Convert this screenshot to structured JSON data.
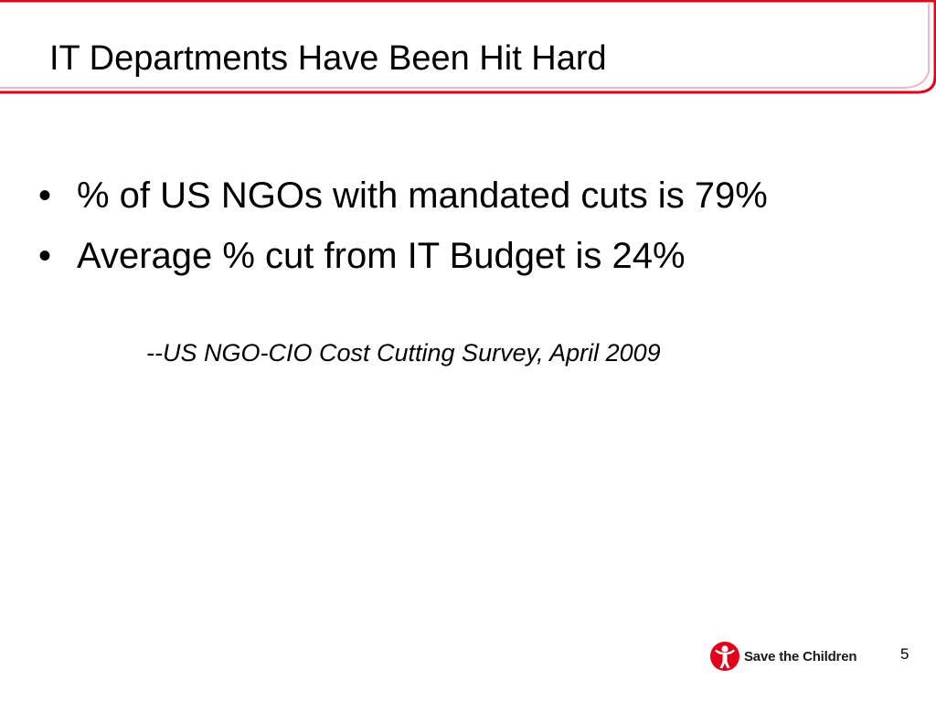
{
  "slide": {
    "title": "IT Departments Have Been Hit Hard",
    "bullets": [
      {
        "marker": "•",
        "text": "% of US NGOs with mandated cuts is 79%"
      },
      {
        "marker": "•",
        "text": "Average % cut from IT Budget is 24%"
      }
    ],
    "citation": "--US NGO-CIO Cost Cutting Survey, April 2009",
    "footer": {
      "logo_text": "Save the Children",
      "page_number": "5"
    }
  },
  "colors": {
    "accent": "#e3001b",
    "text": "#000000",
    "background": "#ffffff"
  }
}
